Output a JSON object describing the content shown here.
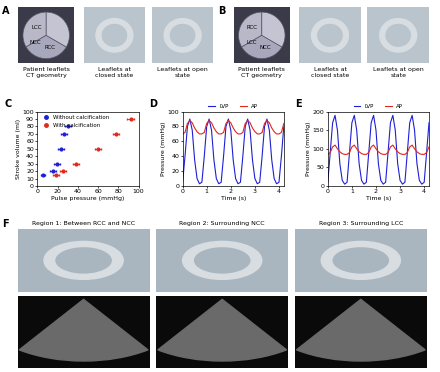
{
  "panels": {
    "A": {
      "letter": "A",
      "leaflet_labels": [
        "LCC",
        "NCC",
        "RCC"
      ],
      "captions": [
        "Patient leaflets CT geometry",
        "Leaflets at closed state",
        "Leaflets at open state"
      ]
    },
    "B": {
      "letter": "B",
      "leaflet_labels": [
        "RCC",
        "LCC",
        "NCC"
      ],
      "captions": [
        "Patient leaflets CT geometry",
        "Leaflets at closed state",
        "Leaflets at open state"
      ]
    },
    "F": {
      "letter": "F",
      "regions": [
        "Region 1: Between RCC and NCC",
        "Region 2: Surrounding NCC",
        "Region 3: Surrounding LCC"
      ]
    }
  },
  "chart_data": [
    {
      "type": "scatter",
      "panel": "C",
      "x_label": "Pulse pressure (mmHg)",
      "y_label": "Stroke volume (ml)",
      "xlim": [
        0,
        100
      ],
      "xticks": [
        0,
        20,
        40,
        60,
        80,
        100
      ],
      "ylim": [
        0,
        100
      ],
      "yticks": [
        0,
        10,
        20,
        30,
        40,
        50,
        60,
        70,
        80,
        90,
        100
      ],
      "legend": "upper left",
      "series": [
        {
          "name": "Without calcification",
          "color": "#1f1fd6",
          "marker": "circle",
          "x": [
            6,
            15,
            19,
            23,
            26,
            30
          ],
          "values": [
            15,
            20,
            30,
            50,
            70,
            80
          ],
          "x_error": [
            2,
            3,
            3,
            3,
            3,
            3
          ]
        },
        {
          "name": "With calcification",
          "color": "#e0281e",
          "marker": "circle",
          "x": [
            18,
            25,
            38,
            60,
            78,
            92
          ],
          "values": [
            15,
            20,
            30,
            50,
            70,
            90
          ],
          "x_error": [
            3,
            3,
            3,
            3,
            3,
            3
          ]
        }
      ]
    },
    {
      "type": "line",
      "panel": "D",
      "x_label": "Time (s)",
      "y_label": "Pressure (mmHg)",
      "xlim": [
        0,
        4.2
      ],
      "xticks": [
        0,
        1,
        2,
        3,
        4
      ],
      "ylim": [
        0,
        100
      ],
      "yticks": [
        0,
        20,
        40,
        60,
        80,
        100
      ],
      "legend": "upper center",
      "x": [
        0,
        0.1,
        0.2,
        0.3,
        0.4,
        0.5,
        0.6,
        0.7,
        0.8,
        0.9,
        1.0,
        1.1,
        1.2,
        1.3,
        1.4,
        1.5,
        1.6,
        1.7,
        1.8,
        1.9,
        2.0,
        2.1,
        2.2,
        2.3,
        2.4,
        2.5,
        2.6,
        2.7,
        2.8,
        2.9,
        3.0,
        3.1,
        3.2,
        3.3,
        3.4,
        3.5,
        3.6,
        3.7,
        3.8,
        3.9,
        4.0,
        4.1,
        4.2
      ],
      "series": [
        {
          "name": "LVP",
          "color": "#1f1fd6",
          "values": [
            5,
            40,
            80,
            90,
            75,
            35,
            10,
            3,
            5,
            40,
            80,
            90,
            75,
            35,
            10,
            3,
            5,
            40,
            80,
            90,
            75,
            35,
            10,
            3,
            5,
            40,
            80,
            90,
            75,
            35,
            10,
            3,
            5,
            40,
            80,
            90,
            75,
            35,
            10,
            3,
            5,
            40,
            80
          ]
        },
        {
          "name": "AP",
          "color": "#e0281e",
          "values": [
            70,
            72,
            84,
            88,
            85,
            78,
            73,
            70,
            70,
            72,
            84,
            88,
            85,
            78,
            73,
            70,
            70,
            72,
            84,
            88,
            85,
            78,
            73,
            70,
            70,
            72,
            84,
            88,
            85,
            78,
            73,
            70,
            70,
            72,
            84,
            88,
            85,
            78,
            73,
            70,
            70,
            72,
            84
          ]
        }
      ]
    },
    {
      "type": "line",
      "panel": "E",
      "x_label": "Time (s)",
      "y_label": "Pressure (mmHg)",
      "xlim": [
        0,
        4.2
      ],
      "xticks": [
        0,
        1,
        2,
        3,
        4
      ],
      "ylim": [
        0,
        200
      ],
      "yticks": [
        0,
        50,
        100,
        150,
        200
      ],
      "legend": "upper center",
      "x": [
        0,
        0.1,
        0.2,
        0.3,
        0.4,
        0.5,
        0.6,
        0.7,
        0.8,
        0.9,
        1.0,
        1.1,
        1.2,
        1.3,
        1.4,
        1.5,
        1.6,
        1.7,
        1.8,
        1.9,
        2.0,
        2.1,
        2.2,
        2.3,
        2.4,
        2.5,
        2.6,
        2.7,
        2.8,
        2.9,
        3.0,
        3.1,
        3.2,
        3.3,
        3.4,
        3.5,
        3.6,
        3.7,
        3.8,
        3.9,
        4.0,
        4.1,
        4.2
      ],
      "series": [
        {
          "name": "LVP",
          "color": "#1f1fd6",
          "values": [
            10,
            90,
            170,
            190,
            150,
            60,
            15,
            5,
            10,
            90,
            170,
            190,
            150,
            60,
            15,
            5,
            10,
            90,
            170,
            190,
            150,
            60,
            15,
            5,
            10,
            90,
            170,
            190,
            150,
            60,
            15,
            5,
            10,
            90,
            170,
            190,
            150,
            60,
            15,
            5,
            10,
            90,
            170
          ]
        },
        {
          "name": "AP",
          "color": "#e0281e",
          "values": [
            85,
            90,
            105,
            110,
            100,
            92,
            87,
            85,
            85,
            90,
            105,
            110,
            100,
            92,
            87,
            85,
            85,
            90,
            105,
            110,
            100,
            92,
            87,
            85,
            85,
            90,
            105,
            110,
            100,
            92,
            87,
            85,
            85,
            90,
            105,
            110,
            100,
            92,
            87,
            85,
            85,
            90,
            105
          ]
        }
      ]
    }
  ]
}
